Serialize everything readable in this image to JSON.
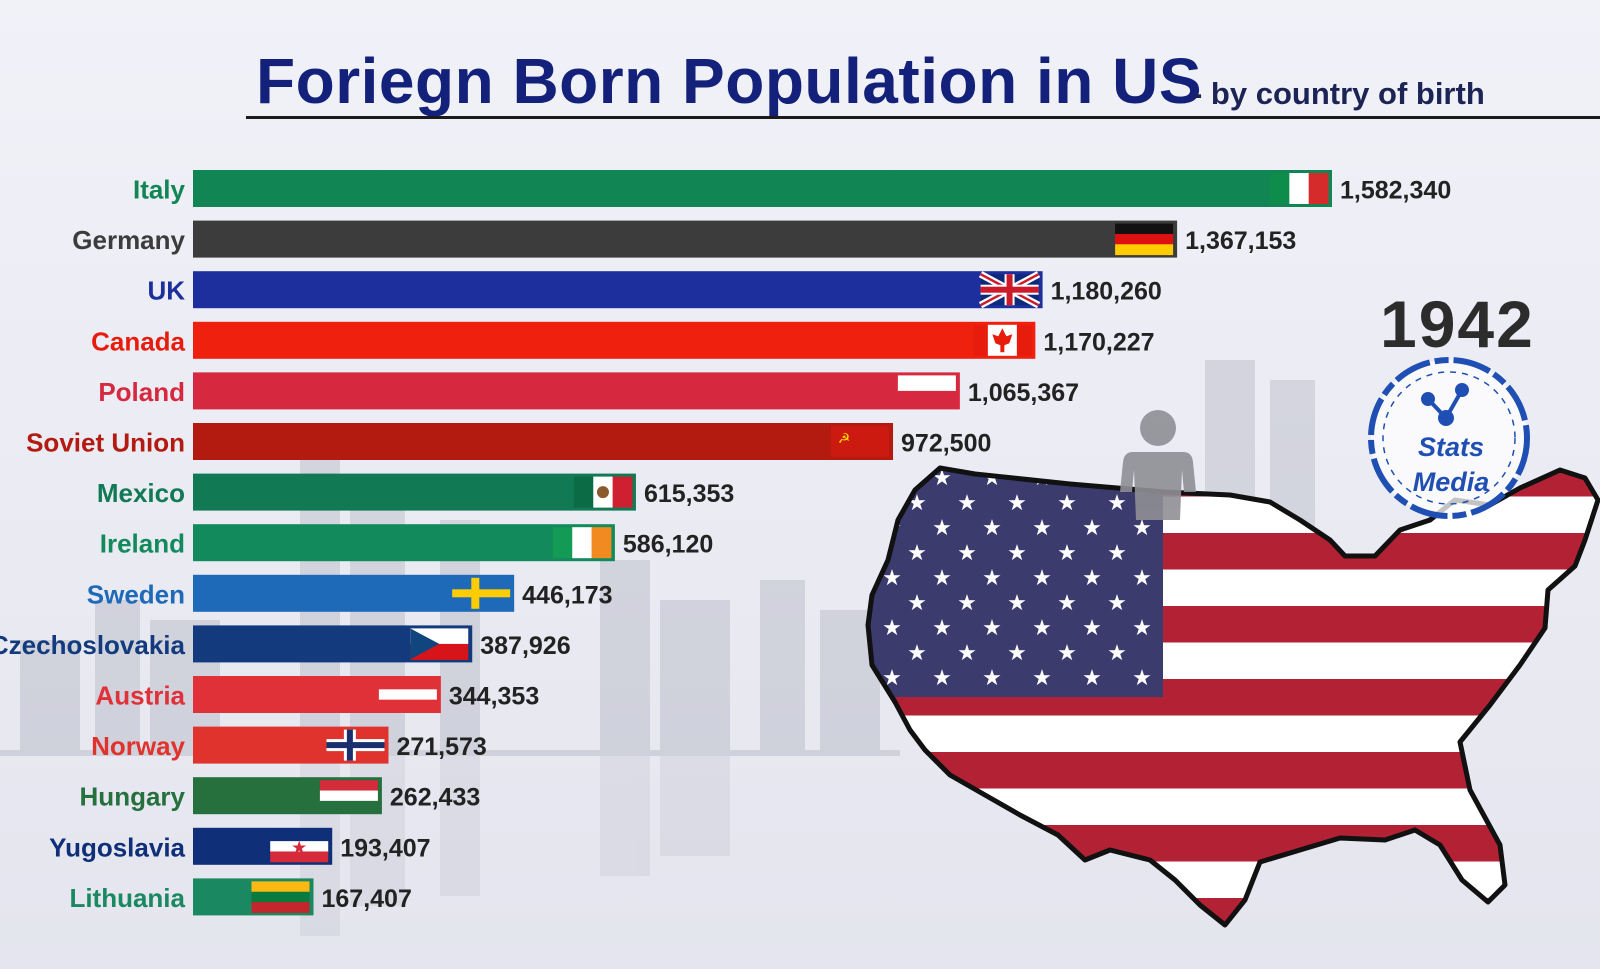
{
  "title": "Foriegn Born Population in US",
  "subtitle": "- by country of birth",
  "year": "1942",
  "logo_text": [
    "Stats",
    "Media"
  ],
  "colors": {
    "title": "#13217a",
    "logo": "#1f4fb3",
    "flag_red": "#b22234",
    "flag_blue": "#3c3b6e"
  },
  "chart_data": {
    "type": "bar",
    "orientation": "horizontal",
    "title": "Foriegn Born Population in US",
    "subtitle": "- by country of birth",
    "categories": [
      "Italy",
      "Germany",
      "UK",
      "Canada",
      "Poland",
      "Soviet Union",
      "Mexico",
      "Ireland",
      "Sweden",
      "Czechoslovakia",
      "Austria",
      "Norway",
      "Hungary",
      "Yugoslavia",
      "Lithuania"
    ],
    "values": [
      1582340,
      1367153,
      1180260,
      1170227,
      1065367,
      972500,
      615353,
      586120,
      446173,
      387926,
      344353,
      271573,
      262433,
      193407,
      167407
    ],
    "value_labels": [
      "1,582,340",
      "1,367,153",
      "1,180,260",
      "1,170,227",
      "1,065,367",
      "972,500",
      "615,353",
      "586,120",
      "446,173",
      "387,926",
      "344,353",
      "271,573",
      "262,433",
      "193,407",
      "167,407"
    ],
    "bar_colors": [
      "#118553",
      "#3c3c3c",
      "#1c2f9d",
      "#f0200e",
      "#d6283e",
      "#b41b10",
      "#117a55",
      "#128a5c",
      "#1e6ab9",
      "#123a7d",
      "#e03038",
      "#e0332d",
      "#26703d",
      "#0f2f78",
      "#1a8860"
    ],
    "label_colors": [
      "#118553",
      "#3c3c3c",
      "#1c2f9d",
      "#e81c0c",
      "#d6283e",
      "#b41b10",
      "#117a55",
      "#128a5c",
      "#1e6ab9",
      "#123a7d",
      "#e03038",
      "#e0332d",
      "#26703d",
      "#0f2f78",
      "#1a8860"
    ],
    "flags": [
      "italy-flag",
      "germany-flag",
      "uk-flag",
      "canada-flag",
      "poland-flag",
      "soviet-union-flag",
      "mexico-flag",
      "ireland-flag",
      "sweden-flag",
      "czechoslovakia-flag",
      "austria-flag",
      "norway-flag",
      "hungary-flag",
      "yugoslavia-flag",
      "lithuania-flag"
    ],
    "year": "1942",
    "xlim": [
      0,
      1582340
    ],
    "grid": false,
    "legend": "none"
  }
}
